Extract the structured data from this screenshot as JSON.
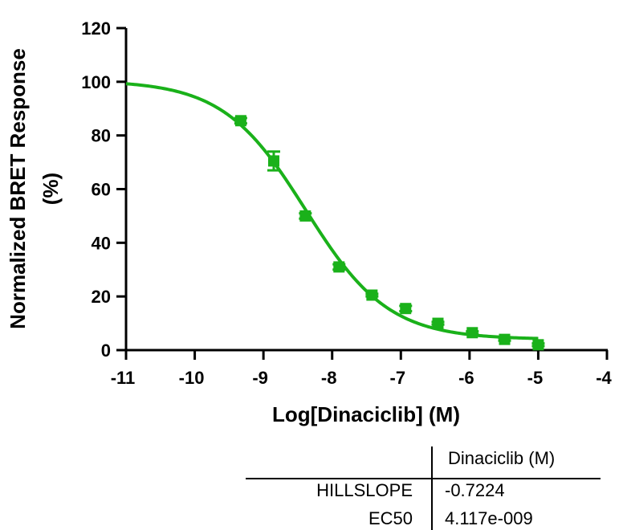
{
  "chart_data": {
    "type": "scatter",
    "title": "",
    "xlabel": "Log[Dinaciclib] (M)",
    "ylabel": [
      "Normalized BRET Response",
      "(%)"
    ],
    "xlim": [
      -11,
      -4
    ],
    "ylim": [
      0,
      120
    ],
    "xticks": [
      "-11",
      "-10",
      "-9",
      "-8",
      "-7",
      "-6",
      "-5",
      "-4"
    ],
    "yticks": [
      "0",
      "20",
      "40",
      "60",
      "80",
      "100",
      "120"
    ],
    "grid": false,
    "legend": "none",
    "series": [
      {
        "color": "#1ab11a",
        "points": [
          {
            "x": -9.33,
            "y": 85.5,
            "err": 1.0
          },
          {
            "x": -8.85,
            "y": 70.5,
            "err": 3.5
          },
          {
            "x": -8.39,
            "y": 50.0,
            "err": 1.0
          },
          {
            "x": -7.9,
            "y": 31.0,
            "err": 1.0
          },
          {
            "x": -7.42,
            "y": 20.5,
            "err": 0.5
          },
          {
            "x": -6.93,
            "y": 15.5,
            "err": 1.0
          },
          {
            "x": -6.46,
            "y": 10.0,
            "err": 0.5
          },
          {
            "x": -5.96,
            "y": 6.5,
            "err": 0.5
          },
          {
            "x": -5.49,
            "y": 4.0,
            "err": 0.5
          },
          {
            "x": -5.0,
            "y": 2.0,
            "err": 0.5
          }
        ],
        "fit": {
          "top": 100.5,
          "bottom": 4.0,
          "logEC50": -8.3855,
          "hillslope": -0.7224,
          "x_range": [
            -11,
            -5
          ]
        }
      }
    ]
  },
  "results_table": {
    "column_header": "Dinaciclib (M)",
    "rows": [
      {
        "label": "HILLSLOPE",
        "value": "-0.7224"
      },
      {
        "label": "EC50",
        "value": "4.117e-009"
      }
    ]
  },
  "colors": {
    "series": "#1ab11a",
    "axes": "#000000"
  }
}
